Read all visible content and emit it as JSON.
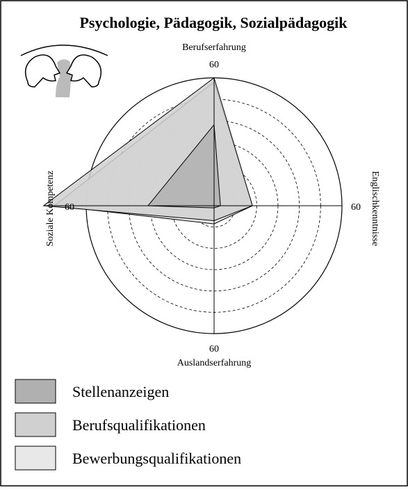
{
  "chart_data": {
    "type": "radar",
    "title": "Psychologie, Pädagogik, Sozialpädagogik",
    "axes": [
      "Berufserfahrung",
      "Englischkenntnisse",
      "Auslandserfahrung",
      "Soziale Kompetenz"
    ],
    "rlim": [
      0,
      60
    ],
    "rticks": [
      10,
      20,
      30,
      40,
      50,
      60
    ],
    "series": [
      {
        "name": "Bewerbungsqualifikationen",
        "color": "#e8e8e8",
        "values": [
          58,
          18,
          8.5,
          75
        ]
      },
      {
        "name": "Berufsqualifikationen",
        "color": "#d0d0d0",
        "values": [
          60,
          18,
          7,
          80
        ]
      },
      {
        "name": "Stellenanzeigen",
        "color": "#b0b0b0",
        "values": [
          38,
          3,
          1,
          31
        ]
      }
    ],
    "legend_order": [
      2,
      1,
      0
    ]
  }
}
